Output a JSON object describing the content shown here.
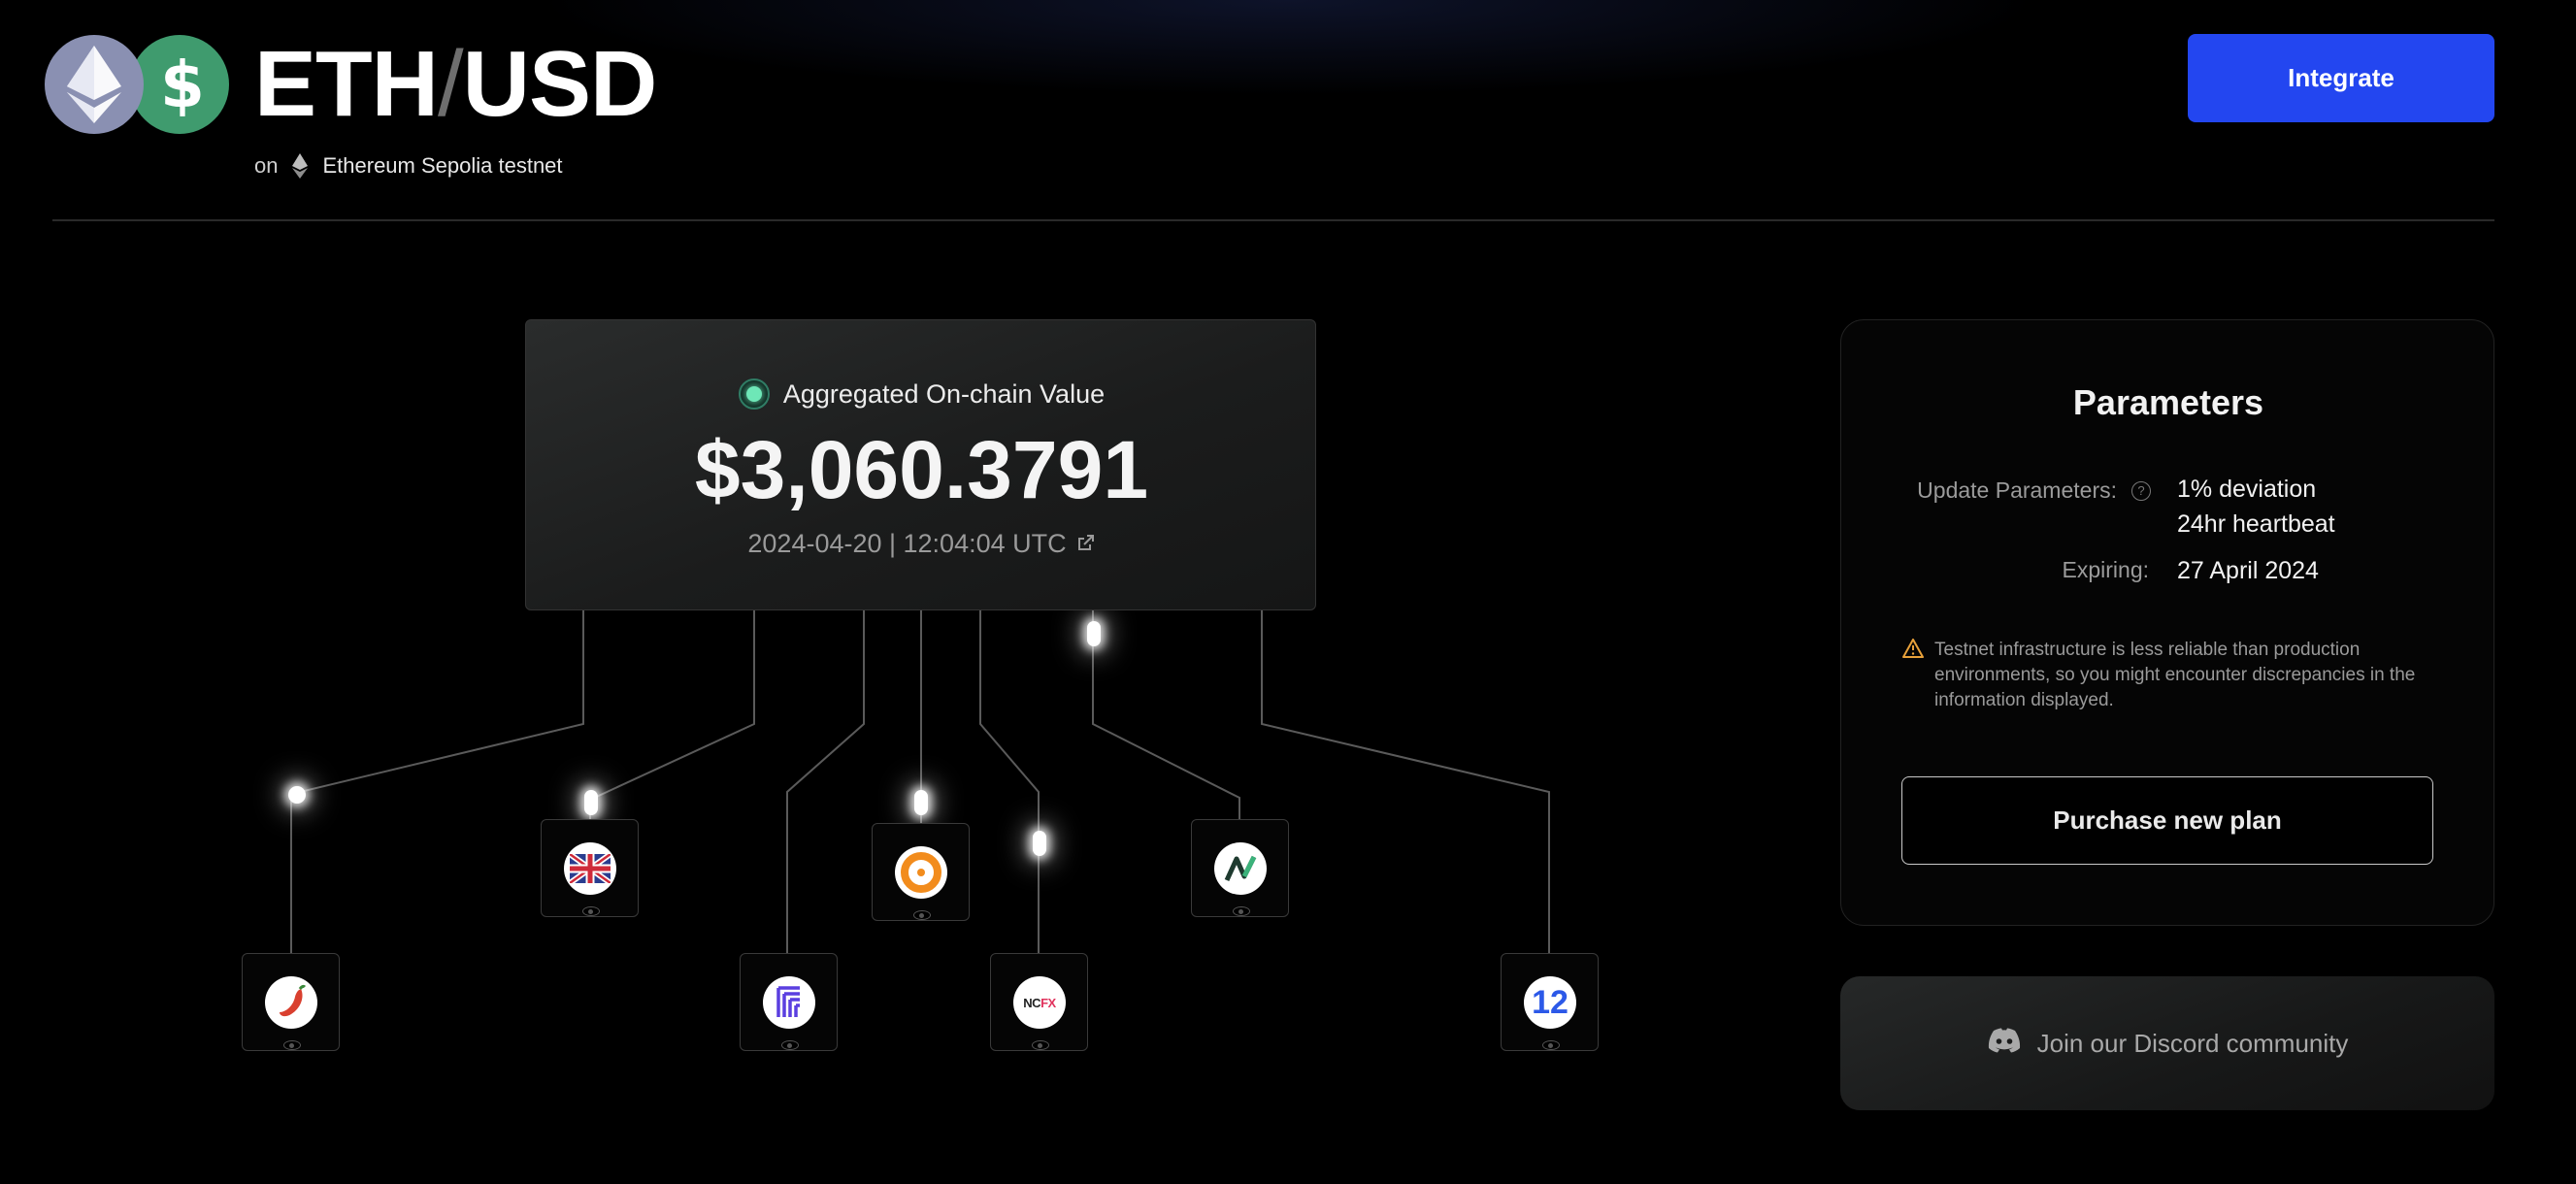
{
  "header": {
    "base_symbol": "ETH",
    "separator": "/",
    "quote_symbol": "USD",
    "network_prefix": "on",
    "network_name": "Ethereum Sepolia testnet",
    "usd_glyph": "$",
    "integrate_label": "Integrate"
  },
  "aggregate": {
    "label": "Aggregated On-chain Value",
    "value": "$3,060.3791",
    "timestamp": "2024-04-20 | 12:04:04 UTC"
  },
  "oracles": [
    {
      "icon": "chili-logo-icon"
    },
    {
      "icon": "uk-flag-logo-icon"
    },
    {
      "icon": "stripes-logo-icon"
    },
    {
      "icon": "orange-ring-logo-icon"
    },
    {
      "icon": "ncfx-logo-icon",
      "text": "NCFX",
      "text_a": "NC",
      "text_b": "FX"
    },
    {
      "icon": "n-wave-logo-icon"
    },
    {
      "icon": "twelve-logo-icon",
      "text": "12"
    }
  ],
  "parameters": {
    "title": "Parameters",
    "update_label": "Update Parameters:",
    "update_help": "?",
    "deviation": "1% deviation",
    "heartbeat": "24hr heartbeat",
    "expiring_label": "Expiring:",
    "expiring_value": "27 April 2024",
    "warning": "Testnet infrastructure is less reliable than production environments, so you might encounter discrepancies in the information displayed.",
    "purchase_label": "Purchase new plan"
  },
  "discord": {
    "label": "Join our Discord community"
  },
  "colors": {
    "accent": "#2346f0",
    "status_green": "#6ee7b7",
    "eth_icon_bg": "#8a90b2",
    "usd_icon_bg": "#3f9b6e",
    "warning": "#e8a13a"
  }
}
